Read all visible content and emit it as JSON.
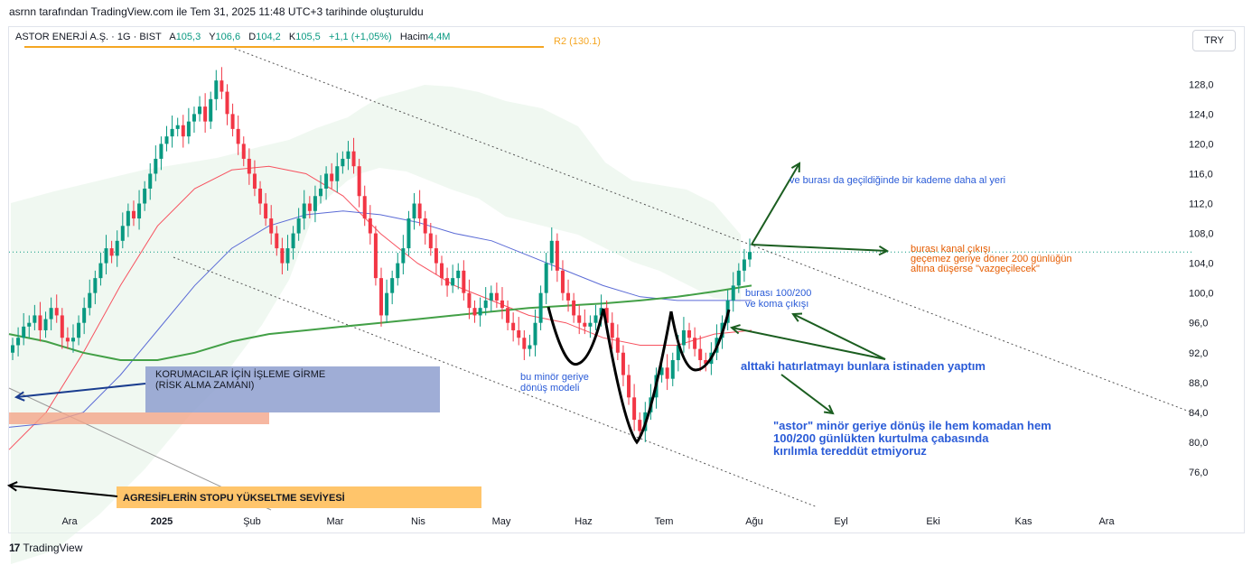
{
  "header": {
    "caption": "asrnn tarafından TradingView.com ile Tem 31, 2025 11:48 UTC+3 tarihinde oluşturuldu"
  },
  "legend": {
    "symbol": "ASTOR ENERJİ A.Ş. · 1G · BIST",
    "open_label": "A",
    "open": "105,3",
    "high_label": "Y",
    "high": "106,6",
    "low_label": "D",
    "low": "104,2",
    "close_label": "K",
    "close": "105,5",
    "change": "+1,1 (+1,05%)",
    "volume_label": "Hacim",
    "volume": "4,4M"
  },
  "currency_button": "TRY",
  "footer": {
    "brand": "TradingView",
    "brand_icon": "tradingview-logo-icon"
  },
  "colors": {
    "up": "#089981",
    "down": "#f23645",
    "ma_red": "#f7525f",
    "ma_blue": "#5b6bd6",
    "ma_green": "#43a047",
    "cloud": "#e3f2e5",
    "resistance": "#f5a623"
  },
  "chart_data": {
    "type": "candlestick",
    "y_axis": {
      "min": 72,
      "max": 133,
      "ticks": [
        "128,0",
        "124,0",
        "120,0",
        "116,0",
        "112,0",
        "108,0",
        "104,0",
        "100,0",
        "96,0",
        "92,0",
        "88,0",
        "84,0",
        "80,0",
        "76,0"
      ]
    },
    "x_axis": {
      "ticks": [
        "Ara",
        "2025",
        "Şub",
        "Mar",
        "Nis",
        "May",
        "Haz",
        "Tem",
        "Ağu",
        "Eyl",
        "Eki",
        "Kas",
        "Ara"
      ]
    },
    "close_series": [
      93,
      94,
      95.5,
      96,
      97,
      95,
      96.5,
      98,
      97,
      94,
      93.5,
      94,
      96,
      98,
      100,
      102,
      104,
      106,
      105,
      107,
      109,
      111,
      110,
      112,
      114,
      116,
      118,
      120,
      121,
      122,
      122.5,
      121,
      123,
      124,
      125,
      123,
      126,
      128.5,
      127,
      124,
      122,
      120,
      118,
      116,
      114,
      112,
      110,
      108,
      106,
      104,
      106,
      108,
      110,
      112,
      111,
      113,
      114,
      116,
      115,
      117,
      118,
      119,
      117,
      113,
      110,
      108,
      102,
      97,
      100,
      102,
      104,
      106,
      110,
      112,
      110,
      108,
      106,
      104,
      102,
      101,
      102,
      103,
      100,
      98,
      97,
      98,
      99,
      100,
      99,
      98,
      96,
      95,
      94,
      92.5,
      93,
      96,
      100,
      104,
      107,
      103,
      100,
      99,
      97,
      96,
      95.5,
      96,
      97,
      98,
      96,
      94,
      92,
      89,
      86,
      83,
      81.5,
      84,
      86,
      89,
      90,
      88.5,
      91,
      93,
      95,
      94,
      92.5,
      91,
      90.5,
      92,
      94,
      96,
      99,
      101,
      103,
      104.5,
      105.5
    ],
    "ma_red_pts": [
      [
        0,
        79
      ],
      [
        0.05,
        84
      ],
      [
        0.1,
        92
      ],
      [
        0.15,
        101
      ],
      [
        0.2,
        109
      ],
      [
        0.25,
        114
      ],
      [
        0.3,
        116.5
      ],
      [
        0.35,
        117
      ],
      [
        0.4,
        116
      ],
      [
        0.45,
        113
      ],
      [
        0.5,
        108
      ],
      [
        0.55,
        104
      ],
      [
        0.6,
        101
      ],
      [
        0.65,
        99
      ],
      [
        0.7,
        97
      ],
      [
        0.75,
        96
      ],
      [
        0.8,
        94
      ],
      [
        0.85,
        93
      ],
      [
        0.9,
        93
      ],
      [
        0.95,
        94.5
      ],
      [
        1,
        95
      ]
    ],
    "ma_blue_pts": [
      [
        0,
        82
      ],
      [
        0.05,
        82.5
      ],
      [
        0.1,
        84
      ],
      [
        0.15,
        89
      ],
      [
        0.2,
        95
      ],
      [
        0.25,
        101
      ],
      [
        0.3,
        106
      ],
      [
        0.35,
        109
      ],
      [
        0.4,
        110.5
      ],
      [
        0.45,
        111
      ],
      [
        0.5,
        110.5
      ],
      [
        0.55,
        109.5
      ],
      [
        0.6,
        108
      ],
      [
        0.65,
        107
      ],
      [
        0.7,
        105
      ],
      [
        0.75,
        103
      ],
      [
        0.8,
        101
      ],
      [
        0.85,
        99.5
      ],
      [
        0.9,
        99
      ],
      [
        0.95,
        99
      ],
      [
        1,
        99
      ]
    ],
    "ma_green_pts": [
      [
        0,
        94.5
      ],
      [
        0.05,
        93.5
      ],
      [
        0.1,
        92
      ],
      [
        0.15,
        91
      ],
      [
        0.2,
        91
      ],
      [
        0.25,
        92
      ],
      [
        0.3,
        93.5
      ],
      [
        0.35,
        94.5
      ],
      [
        0.4,
        95
      ],
      [
        0.45,
        95.5
      ],
      [
        0.5,
        96
      ],
      [
        0.55,
        96.5
      ],
      [
        0.6,
        97
      ],
      [
        0.65,
        97.5
      ],
      [
        0.7,
        98
      ],
      [
        0.75,
        98.3
      ],
      [
        0.8,
        98.6
      ],
      [
        0.85,
        99
      ],
      [
        0.9,
        99.5
      ],
      [
        0.95,
        100.2
      ],
      [
        1,
        101
      ]
    ],
    "resistance_label": "R2 (130.1)",
    "current_price_line": 105.5
  },
  "annotations": {
    "koruma": "KORUMACILAR İÇİN İŞLEME GİRME\n(RİSK ALMA ZAMANI)",
    "agresif": "AGRESİFLERİN STOPU YÜKSELTME SEVİYESİ",
    "minor": "bu minör geriye\ndönüş modeli",
    "koma": "burası 100/200\nve koma çıkışı",
    "kademe": "ve burası da geçildiğinde bir kademe daha al yeri",
    "kanal": "burası kanal çıkışı\ngeçemez geriye döner 200 günlüğün\naltına düşerse \"vazgeçilecek\"",
    "hatirlatma": "alttaki hatırlatmayı bunlara istinaden yaptım",
    "astor": "\"astor\" minör geriye dönüş ile hem komadan hem\n100/200 günlükten kurtulma çabasında\nkırılımla tereddüt etmiyoruz"
  }
}
